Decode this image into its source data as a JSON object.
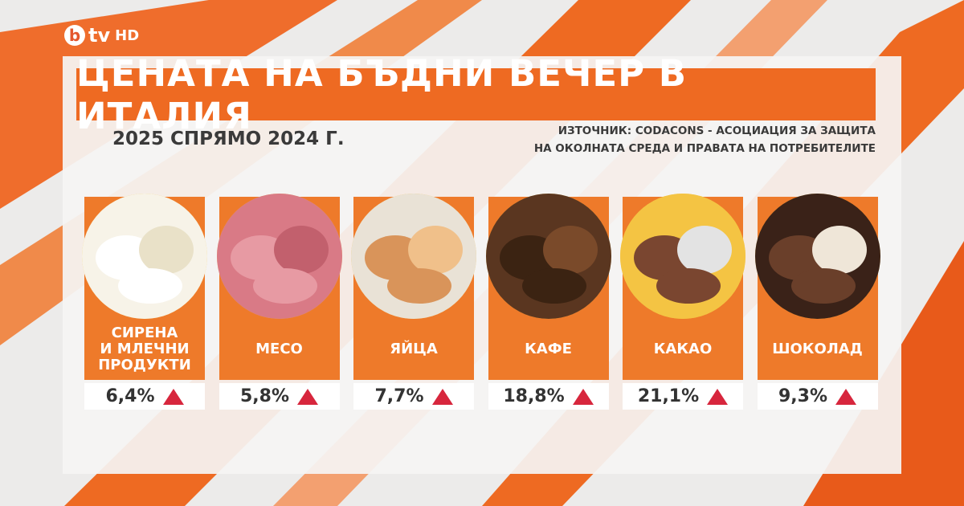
{
  "logo": {
    "mark": "b",
    "text": "tv",
    "badge": "HD"
  },
  "header": {
    "title": "ЦЕНАТА НА БЪДНИ ВЕЧЕР В ИТАЛИЯ",
    "subtitle": "2025 СПРЯМО 2024 Г.",
    "source": [
      "ИЗТОЧНИК: CODACONS - АСОЦИАЦИЯ ЗА ЗАЩИТА",
      "НА ОКОЛНАТА СРЕДА И ПРАВАТА НА ПОТРЕБИТЕЛИТЕ"
    ]
  },
  "items": [
    {
      "label": [
        "СИРЕНА",
        "И МЛЕЧНИ",
        "ПРОДУКТИ"
      ],
      "value": "6,4%"
    },
    {
      "label": [
        "МЕСО"
      ],
      "value": "5,8%"
    },
    {
      "label": [
        "ЯЙЦА"
      ],
      "value": "7,7%"
    },
    {
      "label": [
        "КАФЕ"
      ],
      "value": "18,8%"
    },
    {
      "label": [
        "КАКАО"
      ],
      "value": "21,1%"
    },
    {
      "label": [
        "ШОКОЛАД"
      ],
      "value": "9,3%"
    }
  ]
}
